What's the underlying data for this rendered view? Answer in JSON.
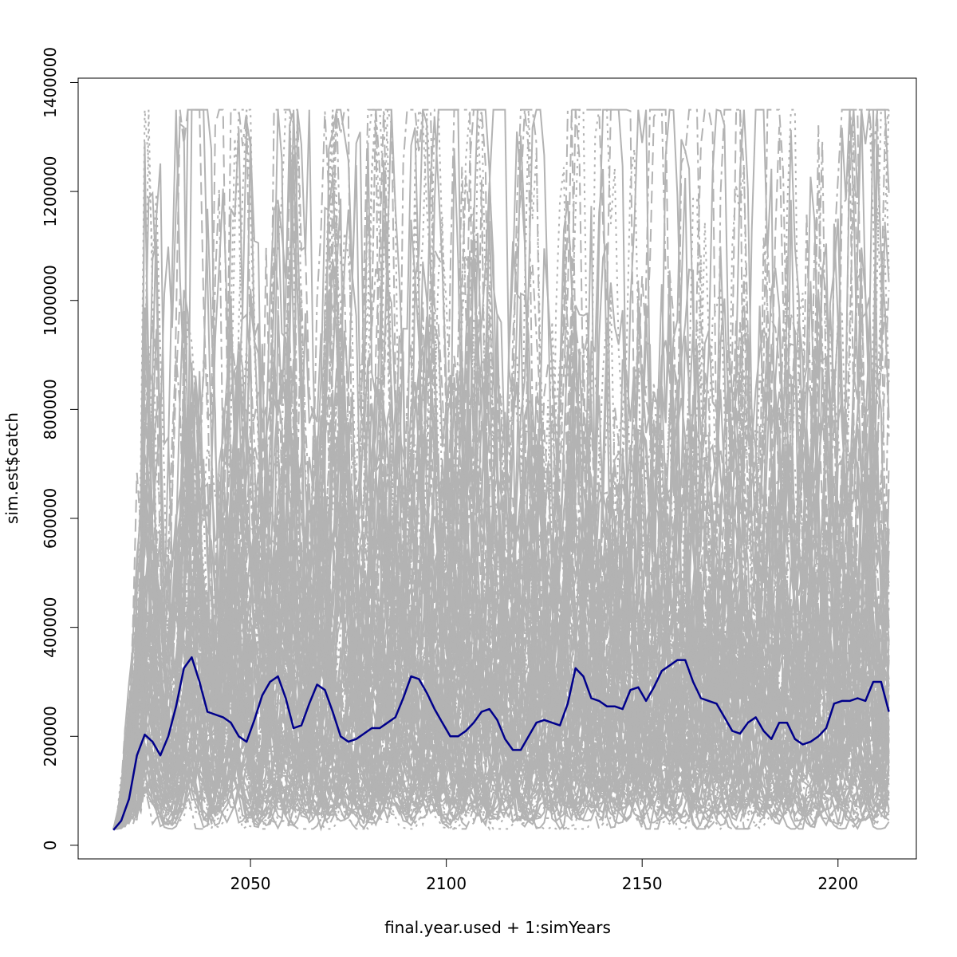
{
  "chart_data": {
    "type": "line",
    "title": "",
    "xlabel": "final.year.used + 1:simYears",
    "ylabel": "sim.est$catch",
    "xlim": [
      2006,
      2220
    ],
    "ylim": [
      -25000,
      1408000
    ],
    "x_ticks": [
      2050,
      2100,
      2150,
      2200
    ],
    "x_tick_labels": [
      "2050",
      "2100",
      "2150",
      "2200"
    ],
    "y_ticks": [
      0,
      200000,
      400000,
      600000,
      800000,
      1000000,
      1200000,
      1400000
    ],
    "y_tick_labels": [
      "0",
      "200000",
      "400000",
      "600000",
      "800000",
      "1000000",
      "1200000",
      "1400000"
    ],
    "grid": false,
    "legend": "none",
    "colors": {
      "simulations": "#b3b3b3",
      "median": "#00008b"
    },
    "simulation_count": 100,
    "x": [
      2015,
      2213
    ],
    "series": [
      {
        "role": "median",
        "x": [
          2015,
          2017,
          2019,
          2021,
          2023,
          2025,
          2027,
          2029,
          2031,
          2033,
          2035,
          2037,
          2039,
          2041,
          2043,
          2045,
          2047,
          2049,
          2051,
          2053,
          2055,
          2057,
          2059,
          2061,
          2063,
          2065,
          2067,
          2069,
          2071,
          2073,
          2075,
          2077,
          2079,
          2081,
          2083,
          2085,
          2087,
          2089,
          2091,
          2093,
          2095,
          2097,
          2099,
          2101,
          2103,
          2105,
          2107,
          2109,
          2111,
          2113,
          2115,
          2117,
          2119,
          2121,
          2123,
          2125,
          2127,
          2129,
          2131,
          2133,
          2135,
          2137,
          2139,
          2141,
          2143,
          2145,
          2147,
          2149,
          2151,
          2153,
          2155,
          2157,
          2159,
          2161,
          2163,
          2165,
          2167,
          2169,
          2171,
          2173,
          2175,
          2177,
          2179,
          2181,
          2183,
          2185,
          2187,
          2189,
          2191,
          2193,
          2195,
          2197,
          2199,
          2201,
          2203,
          2205,
          2207,
          2209,
          2211,
          2213
        ],
        "values": [
          28000,
          45000,
          85000,
          165000,
          203000,
          190000,
          165000,
          200000,
          255000,
          325000,
          345000,
          300000,
          245000,
          240000,
          235000,
          225000,
          200000,
          190000,
          230000,
          275000,
          300000,
          310000,
          270000,
          215000,
          220000,
          260000,
          295000,
          285000,
          245000,
          200000,
          190000,
          195000,
          205000,
          215000,
          215000,
          225000,
          235000,
          270000,
          310000,
          305000,
          280000,
          250000,
          225000,
          200000,
          200000,
          210000,
          225000,
          245000,
          250000,
          230000,
          195000,
          175000,
          175000,
          200000,
          225000,
          230000,
          225000,
          220000,
          260000,
          325000,
          310000,
          270000,
          265000,
          255000,
          255000,
          250000,
          285000,
          290000,
          265000,
          290000,
          320000,
          330000,
          340000,
          340000,
          300000,
          270000,
          265000,
          260000,
          235000,
          210000,
          205000,
          225000,
          235000,
          210000,
          195000,
          225000,
          225000,
          195000,
          185000,
          190000,
          200000,
          215000,
          260000,
          265000,
          265000,
          270000,
          265000,
          300000,
          300000,
          245000
        ]
      }
    ]
  }
}
